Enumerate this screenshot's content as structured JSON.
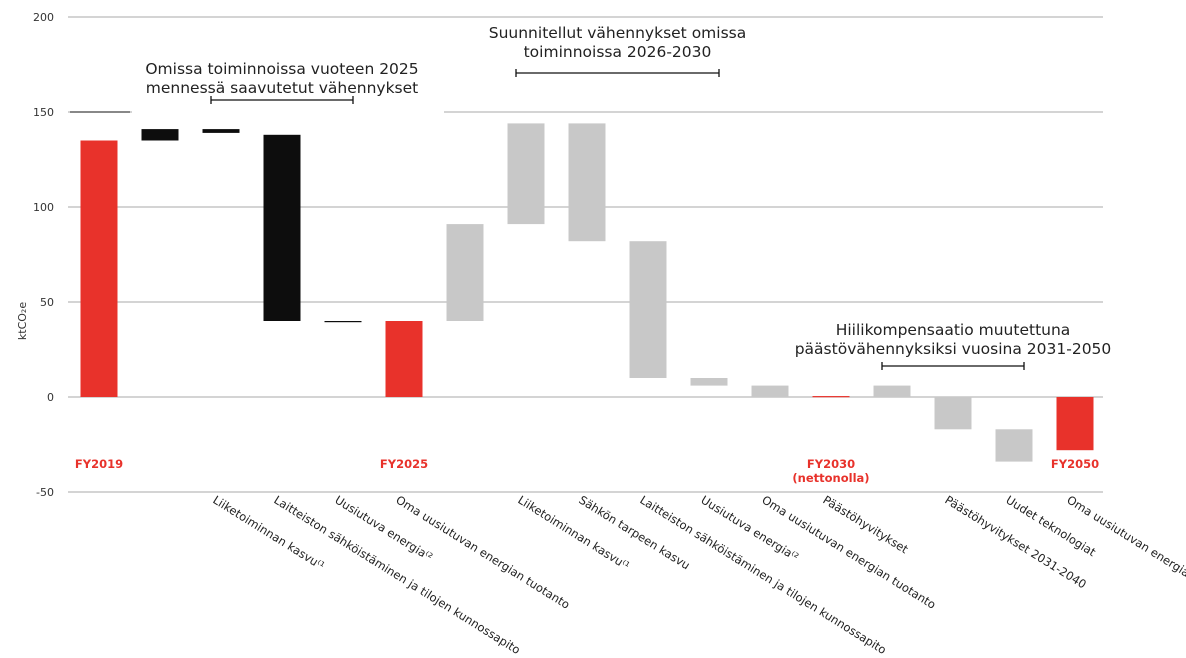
{
  "chart_data": {
    "type": "bar",
    "subtype": "waterfall",
    "ylabel": "ktCO₂e",
    "ylim": [
      -50,
      200
    ],
    "yticks": [
      -50,
      0,
      50,
      100,
      150,
      200
    ],
    "grid": true,
    "colors": {
      "milestone": "#e8322b",
      "achieved": "#0d0d0d",
      "planned": "#c8c8c8",
      "grid": "#a8a8a8",
      "milestone_label": "#e8322b"
    },
    "bars": [
      {
        "label": "",
        "milestone_label": "FY2019",
        "milestone_sub": "",
        "kind": "milestone",
        "start": 0,
        "end": 135
      },
      {
        "label": "Liiketoiminnan kasvu⁽¹",
        "milestone_label": "",
        "kind": "achieved",
        "start": 141,
        "end": 135
      },
      {
        "label": "Laitteiston sähköistäminen ja tilojen kunnossapito",
        "milestone_label": "",
        "kind": "achieved",
        "start": 141,
        "end": 139
      },
      {
        "label": "Uusiutuva energia⁽²",
        "milestone_label": "",
        "kind": "achieved",
        "start": 138,
        "end": 40
      },
      {
        "label": "Oma uusiutuvan energian tuotanto",
        "milestone_label": "",
        "kind": "achieved",
        "start": 40,
        "end": 39.4
      },
      {
        "label": "",
        "milestone_label": "FY2025",
        "milestone_sub": "",
        "kind": "milestone",
        "start": 0,
        "end": 40
      },
      {
        "label": "Liiketoiminnan kasvu⁽¹",
        "milestone_label": "",
        "kind": "planned",
        "start": 40,
        "end": 91
      },
      {
        "label": "Sähkön tarpeen kasvu",
        "milestone_label": "",
        "kind": "planned",
        "start": 91,
        "end": 144
      },
      {
        "label": "Laitteiston sähköistäminen ja tilojen kunnossapito",
        "milestone_label": "",
        "kind": "planned",
        "start": 144,
        "end": 82
      },
      {
        "label": "Uusiutuva energia⁽²",
        "milestone_label": "",
        "kind": "planned",
        "start": 82,
        "end": 10
      },
      {
        "label": "Oma uusiutuvan energian tuotanto",
        "milestone_label": "",
        "kind": "planned",
        "start": 10,
        "end": 6
      },
      {
        "label": "Päästöhyvitykset",
        "milestone_label": "",
        "kind": "planned",
        "start": 6,
        "end": 0
      },
      {
        "label": "",
        "milestone_label": "FY2030",
        "milestone_sub": "(nettonolla)",
        "kind": "milestone",
        "start": 0,
        "end": 0.5
      },
      {
        "label": "Päästöhyvitykset 2031-2040",
        "milestone_label": "",
        "kind": "planned",
        "start": 0,
        "end": 6
      },
      {
        "label": "Uudet teknologiat",
        "milestone_label": "",
        "kind": "planned",
        "start": 0,
        "end": -17
      },
      {
        "label": "Oma uusiutuvan energian tuotanto",
        "milestone_label": "",
        "kind": "planned",
        "start": -17,
        "end": -34
      },
      {
        "label": "",
        "milestone_label": "FY2050",
        "milestone_sub": "",
        "kind": "milestone",
        "start": 0,
        "end": -28
      }
    ],
    "annotations": [
      {
        "lines": [
          "Omissa toiminnoissa vuoteen 2025",
          "mennessä saavutetut vähennykset"
        ],
        "from_bar": 2,
        "to_bar": 4
      },
      {
        "lines": [
          "Suunnitellut vähennykset omissa",
          "toiminnoissa 2026-2030"
        ],
        "from_bar": 7,
        "to_bar": 10
      },
      {
        "lines": [
          "Hiilikompensaatio muutettuna",
          "päästövähennyksiksi vuosina 2031-2050"
        ],
        "from_bar": 13,
        "to_bar": 15
      }
    ],
    "reference_line": {
      "value": 150
    }
  }
}
